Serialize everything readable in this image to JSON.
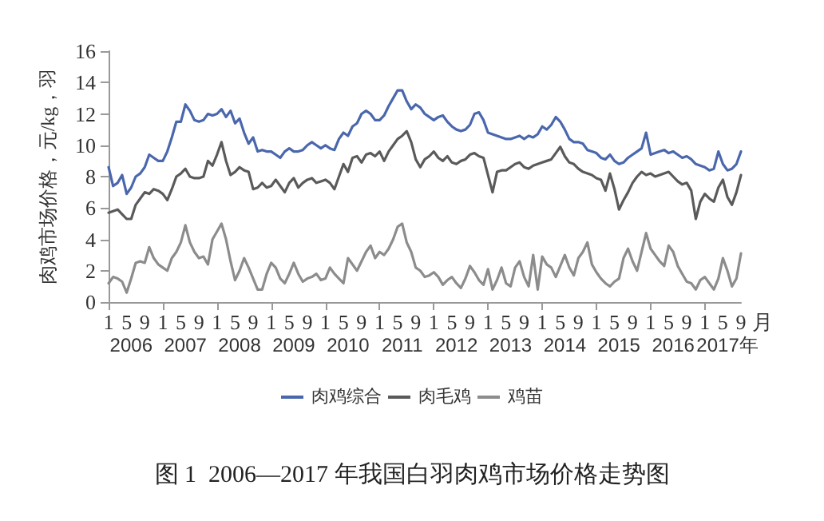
{
  "chart_data": {
    "type": "line",
    "title": "图 1  2006—2017 年我国白羽肉鸡市场价格走势图",
    "ylabel": "肉鸡市场价格，元/kg，羽",
    "xlabel": "月",
    "annotations": [
      "2006",
      "2007",
      "2008",
      "2009",
      "2010",
      "2011",
      "2012",
      "2013",
      "2014",
      "2015",
      "2016",
      "2017年"
    ],
    "categories": [
      "1",
      null,
      null,
      null,
      "5",
      null,
      null,
      null,
      "9",
      null,
      null,
      null,
      "1",
      null,
      null,
      null,
      "5",
      null,
      null,
      null,
      "9",
      null,
      null,
      null,
      "1",
      null,
      null,
      null,
      "5",
      null,
      null,
      null,
      "9",
      null,
      null,
      null,
      "1",
      null,
      null,
      null,
      "5",
      null,
      null,
      null,
      "9",
      null,
      null,
      null,
      "1",
      null,
      null,
      null,
      "5",
      null,
      null,
      null,
      "9",
      null,
      null,
      null,
      "1",
      null,
      null,
      null,
      "5",
      null,
      null,
      null,
      "9",
      null,
      null,
      null,
      "1",
      null,
      null,
      null,
      "5",
      null,
      null,
      null,
      "9",
      null,
      null,
      null,
      "1",
      null,
      null,
      null,
      "5",
      null,
      null,
      null,
      "9",
      null,
      null,
      null,
      "1",
      null,
      null,
      null,
      "5",
      null,
      null,
      null,
      "9",
      null,
      null,
      null,
      "1",
      null,
      null,
      null,
      "5",
      null,
      null,
      null,
      "9",
      null,
      null,
      null,
      "1",
      null,
      null,
      null,
      "5",
      null,
      null,
      null,
      "9",
      null,
      null,
      null,
      "1",
      null,
      null,
      null,
      "5",
      null,
      null,
      null,
      "9"
    ],
    "series": [
      {
        "name": "肉鸡综合",
        "color": "#4a67ad",
        "values": [
          8.6,
          7.4,
          7.6,
          8.1,
          6.9,
          7.3,
          8.0,
          8.2,
          8.6,
          9.4,
          9.2,
          9.0,
          9.0,
          9.6,
          10.5,
          11.5,
          11.5,
          12.6,
          12.2,
          11.6,
          11.5,
          11.6,
          12.0,
          11.9,
          12.0,
          12.3,
          11.8,
          12.2,
          11.4,
          11.7,
          10.8,
          10.1,
          10.5,
          9.6,
          9.7,
          9.6,
          9.6,
          9.4,
          9.2,
          9.6,
          9.8,
          9.6,
          9.6,
          9.7,
          10.0,
          10.2,
          10.0,
          9.8,
          10.0,
          9.8,
          9.7,
          10.4,
          10.8,
          10.6,
          11.2,
          11.4,
          12.0,
          12.2,
          12.0,
          11.6,
          11.6,
          11.9,
          12.5,
          13.0,
          13.5,
          13.5,
          12.8,
          12.3,
          12.6,
          12.4,
          12.0,
          11.8,
          11.6,
          11.8,
          11.9,
          11.5,
          11.2,
          11.0,
          10.9,
          11.0,
          11.3,
          12.0,
          12.1,
          11.6,
          10.8,
          10.7,
          10.6,
          10.5,
          10.4,
          10.4,
          10.5,
          10.6,
          10.4,
          10.6,
          10.5,
          10.7,
          11.2,
          11.0,
          11.3,
          11.8,
          11.5,
          11.0,
          10.4,
          10.2,
          10.2,
          10.1,
          9.7,
          9.6,
          9.5,
          9.2,
          9.1,
          9.4,
          9.0,
          8.8,
          8.9,
          9.2,
          9.4,
          9.6,
          9.8,
          10.8,
          9.4,
          9.5,
          9.6,
          9.7,
          9.5,
          9.6,
          9.4,
          9.2,
          9.3,
          9.1,
          8.8,
          8.7,
          8.6,
          8.4,
          8.5,
          9.6,
          8.8,
          8.4,
          8.5,
          8.8,
          9.6
        ]
      },
      {
        "name": "肉毛鸡",
        "color": "#5a5a5a",
        "values": [
          5.7,
          5.8,
          5.9,
          5.6,
          5.3,
          5.3,
          6.2,
          6.6,
          7.0,
          6.9,
          7.2,
          7.1,
          6.9,
          6.5,
          7.2,
          8.0,
          8.2,
          8.5,
          8.0,
          7.9,
          7.9,
          8.0,
          9.0,
          8.7,
          9.4,
          10.2,
          9.0,
          8.1,
          8.3,
          8.6,
          8.4,
          8.3,
          7.2,
          7.3,
          7.6,
          7.3,
          7.4,
          7.8,
          7.4,
          7.0,
          7.6,
          7.9,
          7.3,
          7.6,
          7.8,
          7.9,
          7.6,
          7.7,
          7.8,
          7.6,
          7.2,
          8.0,
          8.8,
          8.3,
          9.2,
          9.3,
          8.9,
          9.4,
          9.5,
          9.3,
          9.6,
          9.0,
          9.6,
          10.0,
          10.4,
          10.6,
          10.9,
          10.2,
          9.1,
          8.6,
          9.1,
          9.3,
          9.6,
          9.2,
          9.0,
          9.3,
          8.9,
          8.8,
          9.0,
          9.1,
          9.4,
          9.5,
          9.3,
          9.2,
          8.1,
          7.0,
          8.3,
          8.4,
          8.4,
          8.6,
          8.8,
          8.9,
          8.6,
          8.5,
          8.7,
          8.8,
          8.9,
          9.0,
          9.1,
          9.5,
          9.9,
          9.3,
          8.9,
          8.8,
          8.5,
          8.3,
          8.2,
          8.1,
          7.9,
          7.8,
          7.1,
          8.2,
          7.2,
          5.9,
          6.5,
          7.0,
          7.6,
          8.0,
          8.3,
          8.1,
          8.2,
          8.0,
          8.1,
          8.2,
          8.3,
          8.0,
          7.7,
          7.5,
          7.6,
          7.1,
          5.3,
          6.4,
          6.9,
          6.6,
          6.4,
          7.3,
          7.8,
          6.7,
          6.2,
          7.0,
          8.1
        ]
      },
      {
        "name": "鸡苗",
        "color": "#8c8c8c",
        "values": [
          1.2,
          1.6,
          1.5,
          1.3,
          0.6,
          1.5,
          2.5,
          2.6,
          2.5,
          3.5,
          2.8,
          2.4,
          2.2,
          2.0,
          2.8,
          3.2,
          3.8,
          4.9,
          3.8,
          3.2,
          2.8,
          2.9,
          2.4,
          4.0,
          4.5,
          5.0,
          4.0,
          2.6,
          1.4,
          2.0,
          2.8,
          2.2,
          1.5,
          0.8,
          0.8,
          1.8,
          2.5,
          2.2,
          1.5,
          1.2,
          1.8,
          2.5,
          1.8,
          1.3,
          1.5,
          1.6,
          1.8,
          1.4,
          1.5,
          2.2,
          1.8,
          1.5,
          1.2,
          2.8,
          2.4,
          2.0,
          2.6,
          3.2,
          3.6,
          2.8,
          3.2,
          3.0,
          3.4,
          4.0,
          4.8,
          5.0,
          3.8,
          3.2,
          2.2,
          2.0,
          1.6,
          1.7,
          1.9,
          1.6,
          1.1,
          1.4,
          1.6,
          1.2,
          0.9,
          1.5,
          2.3,
          1.9,
          1.4,
          1.1,
          2.1,
          0.8,
          1.4,
          2.2,
          1.2,
          1.0,
          2.2,
          2.6,
          1.6,
          1.0,
          3.0,
          0.8,
          2.9,
          2.4,
          2.2,
          1.6,
          2.3,
          3.0,
          2.2,
          1.7,
          2.8,
          3.2,
          3.8,
          2.4,
          1.9,
          1.5,
          1.2,
          1.0,
          1.3,
          1.5,
          2.8,
          3.4,
          2.6,
          2.0,
          3.2,
          4.4,
          3.4,
          3.0,
          2.6,
          2.3,
          3.6,
          3.2,
          2.3,
          1.8,
          1.3,
          1.2,
          0.8,
          1.4,
          1.6,
          1.2,
          0.8,
          1.5,
          2.8,
          2.0,
          1.0,
          1.5,
          3.1
        ]
      }
    ],
    "ylim": [
      0,
      16
    ],
    "yticks": [
      0,
      2,
      4,
      6,
      8,
      10,
      12,
      14,
      16
    ],
    "legend": "bottom",
    "marker": "none",
    "line_style": "solid"
  }
}
